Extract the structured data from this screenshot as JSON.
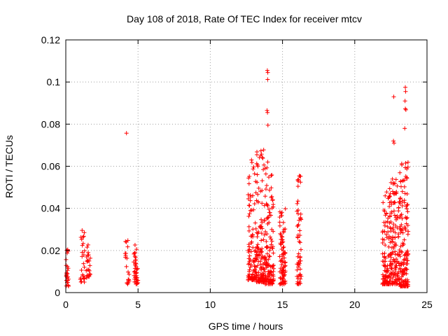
{
  "chart_data": {
    "type": "scatter",
    "title": "Day 108 of 2018, Rate Of TEC Index for receiver mtcv",
    "xlabel": "GPS time / hours",
    "ylabel": "ROTI / TECUs",
    "xlim": [
      0,
      25
    ],
    "ylim": [
      0,
      0.12
    ],
    "x_ticks": [
      "0",
      "5",
      "10",
      "15",
      "20",
      "25"
    ],
    "y_ticks": [
      "0",
      "0.02",
      "0.04",
      "0.06",
      "0.08",
      "0.1",
      "0.12"
    ],
    "grid": true,
    "marker": "+",
    "marker_color": "#ff0000",
    "clusters": [
      {
        "x": [
          0.0,
          0.2
        ],
        "y": [
          0.003,
          0.024
        ],
        "n": 25
      },
      {
        "x": [
          1.0,
          1.3
        ],
        "y": [
          0.005,
          0.03
        ],
        "n": 25
      },
      {
        "x": [
          1.4,
          1.7
        ],
        "y": [
          0.007,
          0.026
        ],
        "n": 25
      },
      {
        "x": [
          4.1,
          4.4
        ],
        "y": [
          0.004,
          0.026
        ],
        "n": 20
      },
      {
        "x": [
          4.7,
          5.0
        ],
        "y": [
          0.004,
          0.024
        ],
        "n": 40
      },
      {
        "x": [
          12.6,
          13.2
        ],
        "y": [
          0.006,
          0.063
        ],
        "n": 110
      },
      {
        "x": [
          13.2,
          13.8
        ],
        "y": [
          0.005,
          0.069
        ],
        "n": 130
      },
      {
        "x": [
          13.8,
          14.4
        ],
        "y": [
          0.004,
          0.062
        ],
        "n": 120
      },
      {
        "x": [
          14.8,
          15.2
        ],
        "y": [
          0.004,
          0.041
        ],
        "n": 90
      },
      {
        "x": [
          16.0,
          16.3
        ],
        "y": [
          0.004,
          0.057
        ],
        "n": 60
      },
      {
        "x": [
          21.9,
          22.5
        ],
        "y": [
          0.004,
          0.05
        ],
        "n": 120
      },
      {
        "x": [
          22.5,
          23.1
        ],
        "y": [
          0.004,
          0.054
        ],
        "n": 120
      },
      {
        "x": [
          23.1,
          23.7
        ],
        "y": [
          0.003,
          0.062
        ],
        "n": 150
      }
    ],
    "points": [
      {
        "x": 4.2,
        "y": 0.0757
      },
      {
        "x": 13.95,
        "y": 0.1055
      },
      {
        "x": 13.98,
        "y": 0.1045
      },
      {
        "x": 13.97,
        "y": 0.1012
      },
      {
        "x": 13.93,
        "y": 0.0865
      },
      {
        "x": 13.96,
        "y": 0.0855
      },
      {
        "x": 13.99,
        "y": 0.0795
      },
      {
        "x": 22.7,
        "y": 0.093
      },
      {
        "x": 22.68,
        "y": 0.072
      },
      {
        "x": 22.72,
        "y": 0.071
      },
      {
        "x": 23.5,
        "y": 0.0975
      },
      {
        "x": 23.52,
        "y": 0.0955
      },
      {
        "x": 23.48,
        "y": 0.091
      },
      {
        "x": 23.5,
        "y": 0.0873
      },
      {
        "x": 23.54,
        "y": 0.0868
      },
      {
        "x": 23.46,
        "y": 0.078
      },
      {
        "x": 23.52,
        "y": 0.0615
      },
      {
        "x": 13.5,
        "y": 0.065
      },
      {
        "x": 13.8,
        "y": 0.059
      },
      {
        "x": 23.3,
        "y": 0.053
      }
    ]
  }
}
